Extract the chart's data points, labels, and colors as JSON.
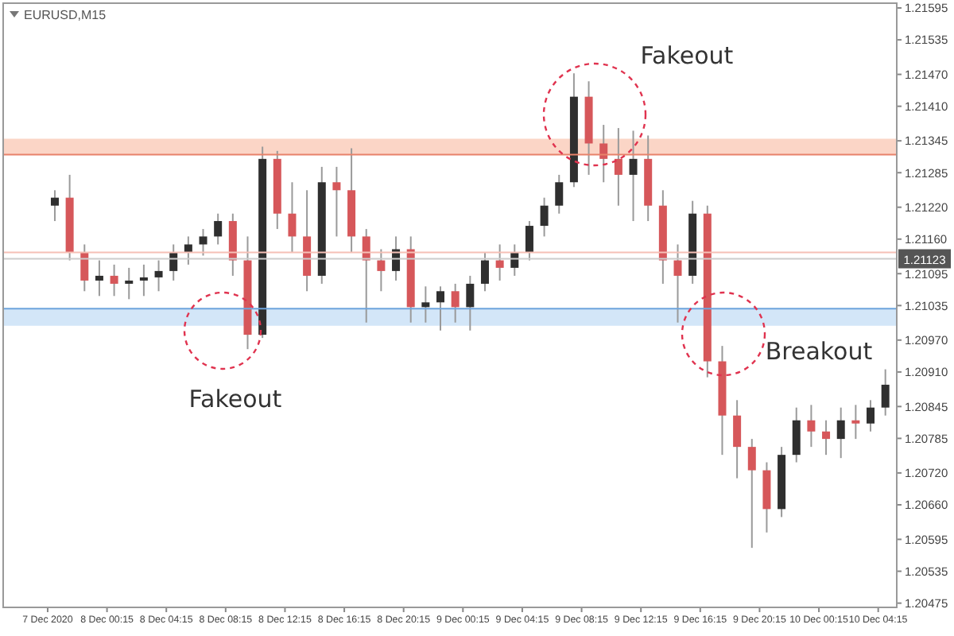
{
  "chart_data": {
    "type": "candlestick",
    "title": "EURUSD,M15",
    "x": [
      "2020-12-07T20:45",
      "2020-12-07T21:45",
      "2020-12-07T22:45",
      "2020-12-07T23:45",
      "2020-12-08T00:45",
      "2020-12-08T01:45",
      "2020-12-08T02:45",
      "2020-12-08T03:45",
      "2020-12-08T04:45",
      "2020-12-08T05:45",
      "2020-12-08T06:45",
      "2020-12-08T07:45",
      "2020-12-08T08:45",
      "2020-12-08T09:45",
      "2020-12-08T10:45",
      "2020-12-08T11:45",
      "2020-12-08T12:45",
      "2020-12-08T13:45",
      "2020-12-08T14:45",
      "2020-12-08T15:45",
      "2020-12-08T16:45",
      "2020-12-08T17:45",
      "2020-12-08T18:45",
      "2020-12-08T19:45",
      "2020-12-08T20:45",
      "2020-12-08T21:45",
      "2020-12-08T22:45",
      "2020-12-08T23:45",
      "2020-12-09T00:45",
      "2020-12-09T01:45",
      "2020-12-09T02:45",
      "2020-12-09T03:45",
      "2020-12-09T04:45",
      "2020-12-09T05:45",
      "2020-12-09T06:45",
      "2020-12-09T07:45",
      "2020-12-09T08:45",
      "2020-12-09T09:45",
      "2020-12-09T10:45",
      "2020-12-09T11:45",
      "2020-12-09T12:45",
      "2020-12-09T13:45",
      "2020-12-09T14:45",
      "2020-12-09T15:45",
      "2020-12-09T16:45",
      "2020-12-09T17:45",
      "2020-12-09T18:45",
      "2020-12-09T19:45",
      "2020-12-09T20:45",
      "2020-12-09T21:45",
      "2020-12-09T22:45",
      "2020-12-09T23:45",
      "2020-12-10T00:45",
      "2020-12-10T01:45",
      "2020-12-10T02:45",
      "2020-12-10T03:45",
      "2020-12-10T04:45"
    ],
    "ohlc": [
      [
        1.21223,
        1.21252,
        1.21194,
        1.21238
      ],
      [
        1.21238,
        1.21281,
        1.2112,
        1.21135
      ],
      [
        1.21135,
        1.2115,
        1.21062,
        1.21082
      ],
      [
        1.21082,
        1.2112,
        1.21053,
        1.21091
      ],
      [
        1.21091,
        1.21112,
        1.21053,
        1.21076
      ],
      [
        1.21076,
        1.21106,
        1.21047,
        1.21082
      ],
      [
        1.21082,
        1.21112,
        1.21053,
        1.21088
      ],
      [
        1.21088,
        1.2112,
        1.21062,
        1.211
      ],
      [
        1.211,
        1.2115,
        1.21082,
        1.21135
      ],
      [
        1.21135,
        1.21165,
        1.21112,
        1.2115
      ],
      [
        1.2115,
        1.21179,
        1.21129,
        1.21165
      ],
      [
        1.21165,
        1.21208,
        1.2115,
        1.21194
      ],
      [
        1.21194,
        1.21208,
        1.21091,
        1.2112
      ],
      [
        1.2112,
        1.21165,
        1.20953,
        1.2098
      ],
      [
        1.2098,
        1.21334,
        1.20974,
        1.21311
      ],
      [
        1.21311,
        1.21326,
        1.21179,
        1.21208
      ],
      [
        1.21208,
        1.21267,
        1.21135,
        1.21165
      ],
      [
        1.21165,
        1.21252,
        1.21062,
        1.21091
      ],
      [
        1.21091,
        1.21296,
        1.21076,
        1.21267
      ],
      [
        1.21267,
        1.21296,
        1.21165,
        1.21252
      ],
      [
        1.21252,
        1.21331,
        1.21135,
        1.21165
      ],
      [
        1.21165,
        1.21179,
        1.21003,
        1.2112
      ],
      [
        1.2112,
        1.21141,
        1.21062,
        1.211
      ],
      [
        1.211,
        1.21165,
        1.21082,
        1.21141
      ],
      [
        1.21141,
        1.21165,
        1.21003,
        1.21032
      ],
      [
        1.21032,
        1.21071,
        1.21003,
        1.21041
      ],
      [
        1.21041,
        1.21071,
        1.20988,
        1.21062
      ],
      [
        1.21062,
        1.21076,
        1.21003,
        1.21032
      ],
      [
        1.21032,
        1.21091,
        1.20988,
        1.21076
      ],
      [
        1.21076,
        1.21135,
        1.21062,
        1.2112
      ],
      [
        1.2112,
        1.2115,
        1.21082,
        1.21106
      ],
      [
        1.21106,
        1.2115,
        1.21091,
        1.21135
      ],
      [
        1.21135,
        1.21194,
        1.2112,
        1.21185
      ],
      [
        1.21185,
        1.21238,
        1.21165,
        1.21223
      ],
      [
        1.21223,
        1.21281,
        1.21208,
        1.21267
      ],
      [
        1.21267,
        1.21472,
        1.21258,
        1.21428
      ],
      [
        1.21428,
        1.21457,
        1.21281,
        1.2134
      ],
      [
        1.2134,
        1.21375,
        1.21267,
        1.21311
      ],
      [
        1.21311,
        1.21369,
        1.21223,
        1.21281
      ],
      [
        1.21281,
        1.21364,
        1.21194,
        1.21311
      ],
      [
        1.21311,
        1.21355,
        1.21194,
        1.21223
      ],
      [
        1.21223,
        1.21252,
        1.21076,
        1.2112
      ],
      [
        1.2112,
        1.2115,
        1.21003,
        1.21091
      ],
      [
        1.21091,
        1.21232,
        1.21076,
        1.21208
      ],
      [
        1.21208,
        1.21223,
        1.209,
        1.2093
      ],
      [
        1.2093,
        1.20959,
        1.20754,
        1.20828
      ],
      [
        1.20828,
        1.20857,
        1.2071,
        1.20769
      ],
      [
        1.20769,
        1.20784,
        1.20579,
        1.20725
      ],
      [
        1.20725,
        1.2074,
        1.20608,
        1.20652
      ],
      [
        1.20652,
        1.20769,
        1.20637,
        1.20754
      ],
      [
        1.20754,
        1.20843,
        1.2074,
        1.20819
      ],
      [
        1.20819,
        1.20848,
        1.20769,
        1.20798
      ],
      [
        1.20798,
        1.20819,
        1.20754,
        1.20784
      ],
      [
        1.20784,
        1.20843,
        1.20748,
        1.20819
      ],
      [
        1.20819,
        1.20848,
        1.20784,
        1.20813
      ],
      [
        1.20813,
        1.20857,
        1.20798,
        1.20843
      ],
      [
        1.20843,
        1.20915,
        1.20828,
        1.20886
      ]
    ],
    "xlim": [
      "2020-12-07T17:15",
      "2020-12-10T05:30"
    ],
    "xticks": [
      {
        "value": "2020-12-07T20:15",
        "label": "7 Dec 2020"
      },
      {
        "value": "2020-12-08T00:15",
        "label": "8 Dec 00:15"
      },
      {
        "value": "2020-12-08T04:15",
        "label": "8 Dec 04:15"
      },
      {
        "value": "2020-12-08T08:15",
        "label": "8 Dec 08:15"
      },
      {
        "value": "2020-12-08T12:15",
        "label": "8 Dec 12:15"
      },
      {
        "value": "2020-12-08T16:15",
        "label": "8 Dec 16:15"
      },
      {
        "value": "2020-12-08T20:15",
        "label": "8 Dec 20:15"
      },
      {
        "value": "2020-12-09T00:15",
        "label": "9 Dec 00:15"
      },
      {
        "value": "2020-12-09T04:15",
        "label": "9 Dec 04:15"
      },
      {
        "value": "2020-12-09T08:15",
        "label": "9 Dec 08:15"
      },
      {
        "value": "2020-12-09T12:15",
        "label": "9 Dec 12:15"
      },
      {
        "value": "2020-12-09T16:15",
        "label": "9 Dec 16:15"
      },
      {
        "value": "2020-12-09T20:15",
        "label": "9 Dec 20:15"
      },
      {
        "value": "2020-12-10T00:15",
        "label": "10 Dec 00:15"
      },
      {
        "value": "2020-12-10T04:15",
        "label": "10 Dec 04:15"
      }
    ],
    "ylim": [
      1.20467,
      1.21604
    ],
    "yticks": [
      1.20475,
      1.20535,
      1.20595,
      {
        "value": 1.2066,
        "label": "1.20660"
      },
      {
        "value": 1.2072,
        "label": "1.20720"
      },
      1.20785,
      1.20845,
      {
        "value": 1.2091,
        "label": "1.20910"
      },
      {
        "value": 1.2097,
        "label": "1.20970"
      },
      1.21035,
      1.21095,
      {
        "value": 1.2116,
        "label": "1.21160"
      },
      {
        "value": 1.2122,
        "label": "1.21220"
      },
      1.21285,
      1.21345,
      {
        "value": 1.2141,
        "label": "1.21410"
      },
      {
        "value": 1.2147,
        "label": "1.21470"
      },
      1.21535,
      1.21595
    ],
    "bands": [
      {
        "axis": "y",
        "from": 1.21319,
        "to": 1.21349,
        "color": "#fbd5c6"
      },
      {
        "axis": "y",
        "from": 1.20997,
        "to": 1.21029,
        "color": "#d3e6f8"
      }
    ],
    "ref_lines": [
      {
        "axis": "y",
        "value": 1.21319,
        "color": "#e8826a"
      },
      {
        "axis": "y",
        "value": 1.21029,
        "color": "#6ea4dc"
      },
      {
        "axis": "y",
        "value": 1.21135,
        "color": "#f6c0b6"
      },
      {
        "axis": "y",
        "value": 1.21123,
        "label": "1.21123",
        "color": "#cccccc"
      }
    ],
    "annotations": [
      "Fakeout",
      "Fakeout",
      "Breakout"
    ]
  }
}
